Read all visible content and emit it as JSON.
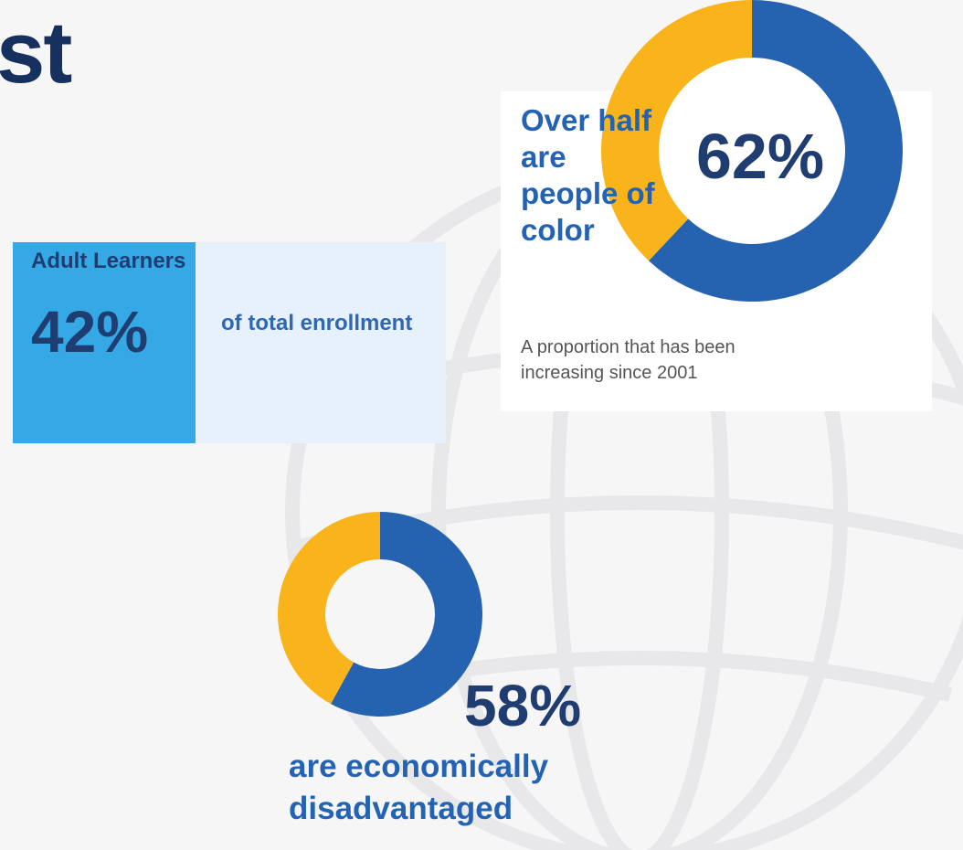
{
  "colors": {
    "primary_blue": "#2563b0",
    "accent_yellow": "#f9b41b",
    "navy": "#1f3d70",
    "light_blue": "#34a9e6",
    "pale_blue": "#e6f1fb"
  },
  "header": {
    "title_fragment": "st"
  },
  "adult_learners": {
    "label": "Adult Learners",
    "value_text": "42%",
    "description": "of total enrollment"
  },
  "people_of_color": {
    "heading": "Over half are people of color",
    "value_text": "62%",
    "subtext": "A proportion that has been increasing since 2001"
  },
  "economically_disadvantaged": {
    "value_text": "58%",
    "description": "are economically disadvantaged"
  },
  "chart_data": [
    {
      "type": "pie",
      "variant": "donut",
      "labels": [
        "",
        ""
      ],
      "values": [
        62,
        38
      ],
      "colors": [
        "#2563b0",
        "#f9b41b"
      ]
    },
    {
      "type": "pie",
      "variant": "donut",
      "labels": [
        "",
        ""
      ],
      "values": [
        58,
        42
      ],
      "colors": [
        "#2563b0",
        "#f9b41b"
      ]
    }
  ]
}
